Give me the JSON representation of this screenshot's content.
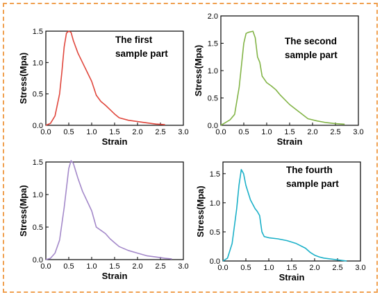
{
  "colors": {
    "border": "#f0a050"
  },
  "chart_data": [
    {
      "type": "line",
      "xlabel": "Strain",
      "ylabel": "Stress(Mpa)",
      "xlim": [
        0.0,
        3.0
      ],
      "ylim": [
        0.0,
        1.5
      ],
      "xticks": [
        "0.0",
        "0.5",
        "1.0",
        "1.5",
        "2.0",
        "2.5",
        "3.0"
      ],
      "yticks": [
        "0.0",
        "0.5",
        "1.0",
        "1.5"
      ],
      "annotation": [
        "The first",
        "sample part"
      ],
      "series": [
        {
          "color": "#e0463c",
          "x": [
            0.0,
            0.1,
            0.2,
            0.3,
            0.35,
            0.4,
            0.45,
            0.5,
            0.55,
            0.6,
            0.7,
            0.8,
            0.9,
            1.0,
            1.1,
            1.2,
            1.3,
            1.4,
            1.5,
            1.6,
            1.8,
            2.0,
            2.2,
            2.4,
            2.6
          ],
          "y": [
            0.0,
            0.03,
            0.15,
            0.5,
            0.85,
            1.25,
            1.47,
            1.5,
            1.48,
            1.35,
            1.15,
            1.0,
            0.85,
            0.7,
            0.48,
            0.38,
            0.32,
            0.25,
            0.18,
            0.12,
            0.08,
            0.06,
            0.04,
            0.02,
            0.01
          ]
        }
      ]
    },
    {
      "type": "line",
      "xlabel": "Strain",
      "ylabel": "Stress(Mpa)",
      "xlim": [
        0.0,
        3.0
      ],
      "ylim": [
        0.0,
        2.0
      ],
      "xticks": [
        "0.0",
        "0.5",
        "1.0",
        "1.5",
        "2.0",
        "2.5",
        "3.0"
      ],
      "yticks": [
        "0.0",
        "0.5",
        "1.0",
        "1.5",
        "2.0"
      ],
      "annotation": [
        "The second",
        "sample part"
      ],
      "series": [
        {
          "color": "#82b446",
          "x": [
            0.0,
            0.1,
            0.2,
            0.3,
            0.4,
            0.5,
            0.55,
            0.6,
            0.7,
            0.75,
            0.8,
            0.85,
            0.9,
            1.0,
            1.1,
            1.2,
            1.3,
            1.5,
            1.7,
            1.9,
            2.1,
            2.3,
            2.5,
            2.7
          ],
          "y": [
            0.0,
            0.05,
            0.1,
            0.2,
            0.7,
            1.5,
            1.68,
            1.7,
            1.72,
            1.6,
            1.25,
            1.15,
            0.9,
            0.78,
            0.72,
            0.65,
            0.55,
            0.38,
            0.25,
            0.12,
            0.08,
            0.05,
            0.03,
            0.02
          ]
        }
      ]
    },
    {
      "type": "line",
      "xlabel": "Strain",
      "ylabel": "Stress(Mpa)",
      "xlim": [
        0.0,
        3.0
      ],
      "ylim": [
        0.0,
        1.5
      ],
      "xticks": [
        "0.0",
        "0.5",
        "1.0",
        "1.5",
        "2.0",
        "2.5",
        "3.0"
      ],
      "yticks": [
        "0.0",
        "0.5",
        "1.0",
        "1.5"
      ],
      "series": [
        {
          "color": "#a388c9",
          "x": [
            0.0,
            0.1,
            0.2,
            0.3,
            0.4,
            0.5,
            0.55,
            0.6,
            0.7,
            0.8,
            0.9,
            1.0,
            1.1,
            1.2,
            1.3,
            1.4,
            1.5,
            1.6,
            1.8,
            2.0,
            2.2,
            2.4,
            2.6,
            2.75
          ],
          "y": [
            0.0,
            0.02,
            0.1,
            0.3,
            0.8,
            1.4,
            1.52,
            1.48,
            1.25,
            1.05,
            0.9,
            0.75,
            0.5,
            0.45,
            0.4,
            0.32,
            0.26,
            0.2,
            0.14,
            0.1,
            0.06,
            0.04,
            0.02,
            0.01
          ]
        }
      ]
    },
    {
      "type": "line",
      "xlabel": "Strain",
      "ylabel": "Stress(Mpa)",
      "xlim": [
        0.0,
        3.0
      ],
      "ylim": [
        0.0,
        1.7
      ],
      "xticks": [
        "0.0",
        "0.5",
        "1.0",
        "1.5",
        "2.0",
        "2.5",
        "3.0"
      ],
      "yticks": [
        "0.0",
        "0.5",
        "1.0",
        "1.5"
      ],
      "annotation": [
        "The fourth",
        "sample part"
      ],
      "series": [
        {
          "color": "#1ab0c8",
          "x": [
            0.0,
            0.1,
            0.2,
            0.3,
            0.35,
            0.4,
            0.45,
            0.5,
            0.6,
            0.7,
            0.75,
            0.8,
            0.85,
            0.9,
            1.0,
            1.2,
            1.4,
            1.6,
            1.8,
            1.9,
            2.0,
            2.1,
            2.2,
            2.4,
            2.6,
            2.7
          ],
          "y": [
            0.0,
            0.05,
            0.3,
            0.9,
            1.3,
            1.57,
            1.5,
            1.3,
            1.05,
            0.9,
            0.85,
            0.78,
            0.5,
            0.42,
            0.4,
            0.38,
            0.35,
            0.3,
            0.22,
            0.15,
            0.1,
            0.07,
            0.05,
            0.03,
            0.01,
            0.0
          ]
        }
      ]
    }
  ]
}
